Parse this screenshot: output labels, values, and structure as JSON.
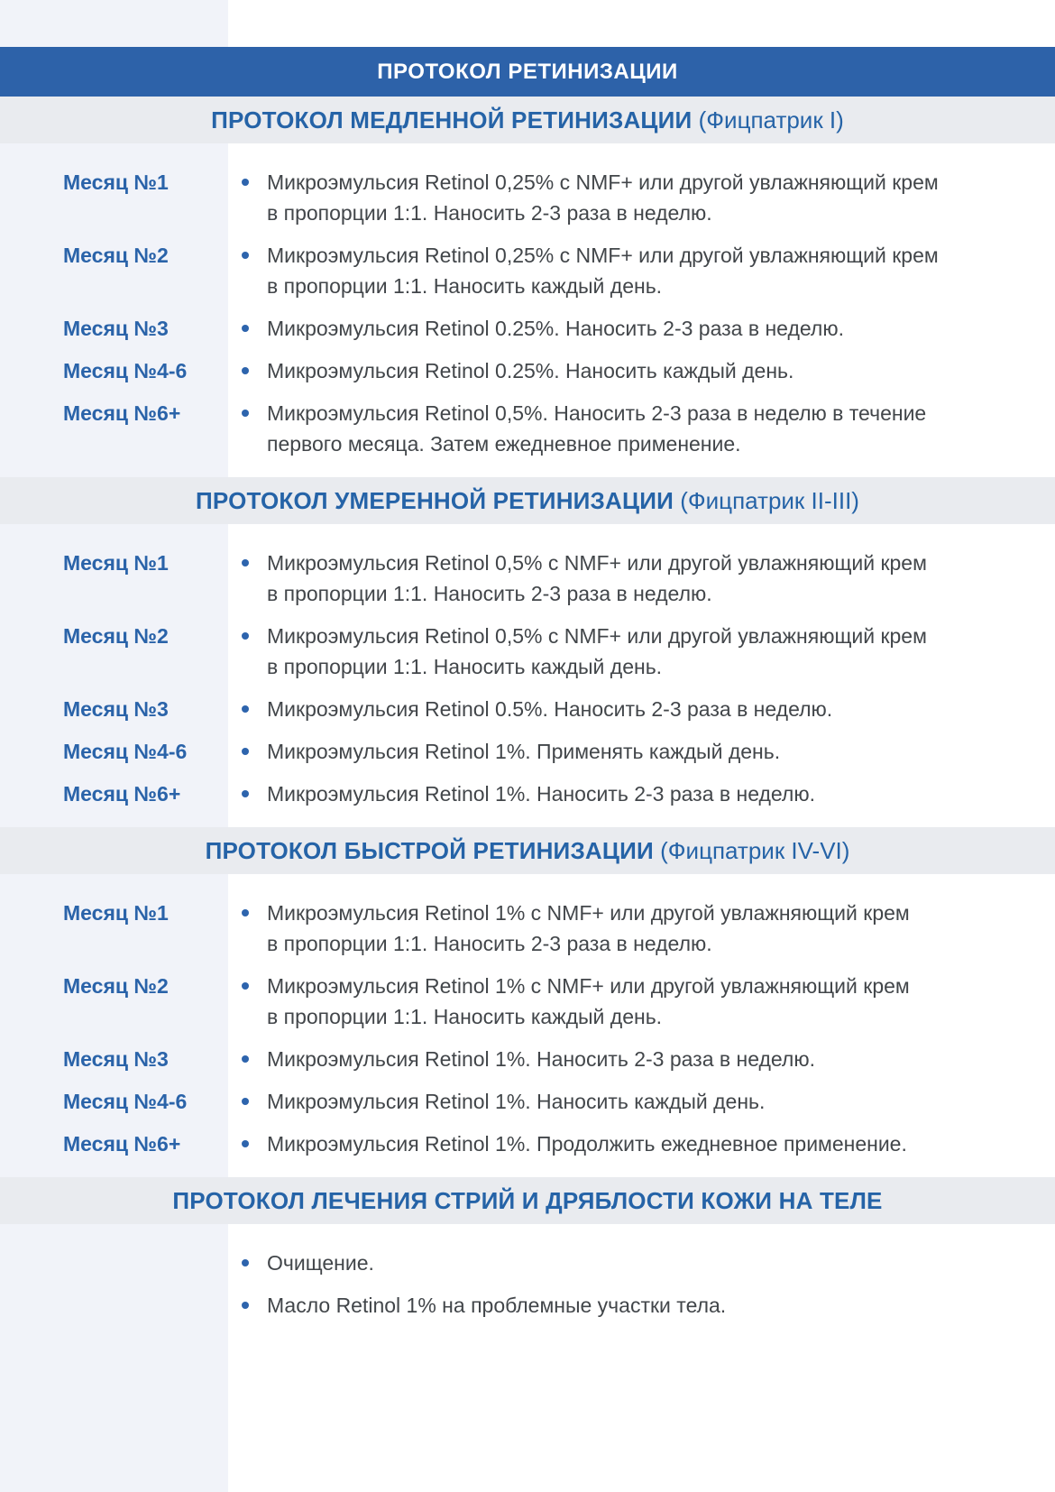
{
  "title_bar": {
    "title": "ПРОТОКОЛ РЕТИНИЗАЦИИ"
  },
  "colors": {
    "bar-blue": "#2d62a9",
    "heading-blue": "#2563a7",
    "label-blue": "#2a63a9",
    "band-gray": "#e9ebef",
    "sidebar-lavender": "#f1f3f9",
    "text-dark": "#42464a",
    "bullet-blue": "#2d64ad"
  },
  "sections": [
    {
      "heading_bold": "ПРОТОКОЛ МЕДЛЕННОЙ РЕТИНИЗАЦИИ",
      "heading_note": "(Фицпатрик I)",
      "rows": [
        {
          "label": "Месяц №1",
          "text": "Микроэмульсия Retinol 0,25% с NMF+ или другой увлажняющий крем\nв пропорции 1:1. Наносить 2-3 раза в неделю."
        },
        {
          "label": "Месяц №2",
          "text": "Микроэмульсия Retinol 0,25% с NMF+ или другой увлажняющий крем\nв пропорции 1:1. Наносить каждый день."
        },
        {
          "label": "Месяц №3",
          "text": "Микроэмульсия Retinol 0.25%. Наносить 2-3 раза в неделю."
        },
        {
          "label": "Месяц №4-6",
          "text": "Микроэмульсия Retinol 0.25%. Наносить каждый день."
        },
        {
          "label": "Месяц №6+",
          "text": "Микроэмульсия Retinol 0,5%. Наносить 2-3 раза в неделю в течение\nпервого месяца. Затем ежедневное применение."
        }
      ]
    },
    {
      "heading_bold": "ПРОТОКОЛ УМЕРЕННОЙ РЕТИНИЗАЦИИ",
      "heading_note": "(Фицпатрик II-III)",
      "rows": [
        {
          "label": "Месяц №1",
          "text": "Микроэмульсия Retinol 0,5% с NMF+ или другой увлажняющий крем\nв пропорции 1:1. Наносить 2-3 раза в неделю."
        },
        {
          "label": "Месяц №2",
          "text": "Микроэмульсия Retinol 0,5% с NMF+ или другой увлажняющий крем\nв пропорции 1:1. Наносить каждый день."
        },
        {
          "label": "Месяц №3",
          "text": "Микроэмульсия Retinol 0.5%. Наносить 2-3 раза в неделю."
        },
        {
          "label": "Месяц №4-6",
          "text": "Микроэмульсия Retinol 1%. Применять каждый день."
        },
        {
          "label": "Месяц №6+",
          "text": "Микроэмульсия Retinol 1%. Наносить 2-3 раза в неделю."
        }
      ]
    },
    {
      "heading_bold": "ПРОТОКОЛ БЫСТРОЙ РЕТИНИЗАЦИИ",
      "heading_note": "(Фицпатрик IV-VI)",
      "rows": [
        {
          "label": "Месяц №1",
          "text": "Микроэмульсия Retinol 1% с NMF+ или другой увлажняющий крем\nв пропорции 1:1. Наносить 2-3 раза в неделю."
        },
        {
          "label": "Месяц №2",
          "text": "Микроэмульсия Retinol 1% с NMF+ или другой увлажняющий крем\nв пропорции 1:1. Наносить каждый день."
        },
        {
          "label": "Месяц №3",
          "text": "Микроэмульсия Retinol 1%. Наносить 2-3 раза в неделю."
        },
        {
          "label": "Месяц №4-6",
          "text": "Микроэмульсия Retinol 1%. Наносить каждый день."
        },
        {
          "label": "Месяц №6+",
          "text": "Микроэмульсия Retinol 1%. Продолжить ежедневное применение."
        }
      ]
    },
    {
      "heading_bold": "ПРОТОКОЛ ЛЕЧЕНИЯ СТРИЙ И ДРЯБЛОСТИ КОЖИ НА ТЕЛЕ",
      "heading_note": "",
      "rows": [
        {
          "label": "",
          "text": "Очищение."
        },
        {
          "label": "",
          "text": "Масло Retinol 1% на проблемные участки тела."
        }
      ]
    }
  ]
}
